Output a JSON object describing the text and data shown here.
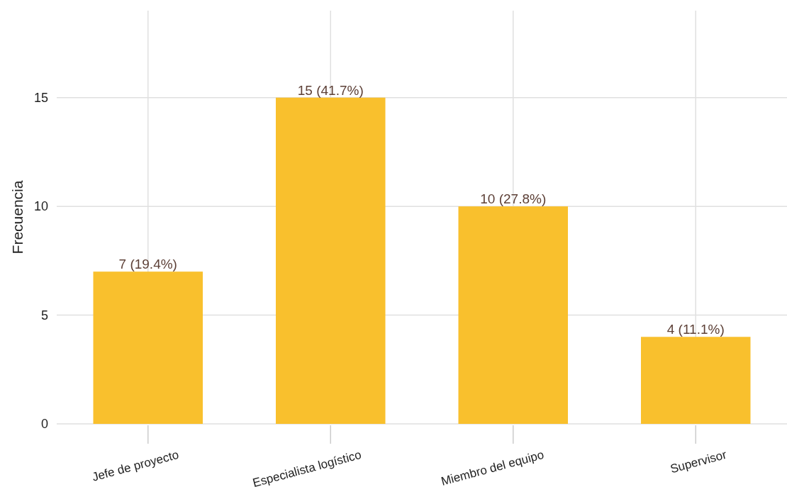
{
  "chart_data": {
    "type": "bar",
    "ylabel": "Frecuencia",
    "categories": [
      "Jefe de proyecto",
      "Especialista logístico",
      "Miembro del equipo",
      "Supervisor"
    ],
    "values": [
      7,
      15,
      10,
      4
    ],
    "color": "#f9c02d",
    "value_labels": [
      "7 (19.4%)",
      "15 (41.7%)",
      "10 (27.8%)",
      "4 (11.1%)"
    ],
    "ylim": [
      0,
      19
    ],
    "yticks": [
      0,
      5,
      10,
      15
    ],
    "grid": true
  }
}
